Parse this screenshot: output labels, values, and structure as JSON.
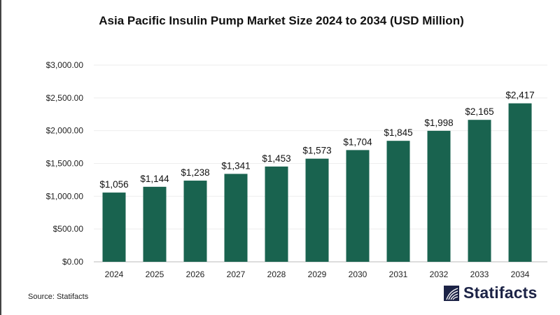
{
  "chart_data": {
    "type": "bar",
    "title": "Asia Pacific Insulin Pump Market Size 2024 to 2034 (USD Million)",
    "categories": [
      "2024",
      "2025",
      "2026",
      "2027",
      "2028",
      "2029",
      "2030",
      "2031",
      "2032",
      "2033",
      "2034"
    ],
    "values": [
      1056,
      1144,
      1238,
      1341,
      1453,
      1573,
      1704,
      1845,
      1998,
      2165,
      2417
    ],
    "data_labels": [
      "$1,056",
      "$1,144",
      "$1,238",
      "$1,341",
      "$1,453",
      "$1,573",
      "$1,704",
      "$1,845",
      "$1,998",
      "$2,165",
      "$2,417"
    ],
    "yticks": [
      0,
      500,
      1000,
      1500,
      2000,
      2500,
      3000
    ],
    "ytick_labels": [
      "$0.00",
      "$500.00",
      "$1,000.00",
      "$1,500.00",
      "$2,000.00",
      "$2,500.00",
      "$3,000.00"
    ],
    "ylim": [
      0,
      3000
    ],
    "xlabel": "",
    "ylabel": "",
    "grid": true,
    "bar_color": "#19634f"
  },
  "source": "Source: Statifacts",
  "logo_text": "Statifacts"
}
